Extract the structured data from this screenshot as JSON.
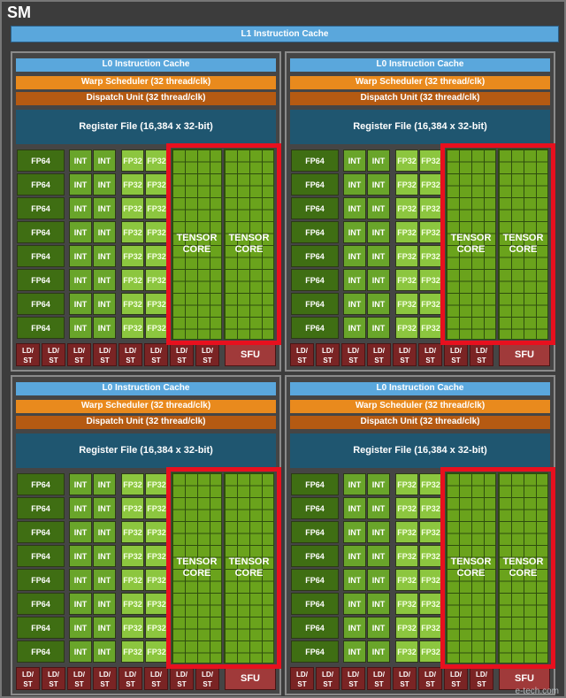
{
  "sm_title": "SM",
  "l1_cache": "L1 Instruction Cache",
  "quadrant": {
    "l0_cache": "L0 Instruction Cache",
    "warp_scheduler": "Warp Scheduler (32 thread/clk)",
    "dispatch_unit": "Dispatch Unit (32 thread/clk)",
    "register_file": "Register File (16,384 x 32-bit)",
    "fp64": "FP64",
    "int": "INT",
    "fp32": "FP32",
    "tensor_core": "TENSOR CORE",
    "ldst": "LD/ ST",
    "sfu": "SFU"
  },
  "watermark": "e-tech.com",
  "colors": {
    "highlight": "#e8101e",
    "l0": "#5aa7dc",
    "warp": "#e98a1d",
    "dispatch": "#b55a12",
    "register": "#1f5670"
  }
}
